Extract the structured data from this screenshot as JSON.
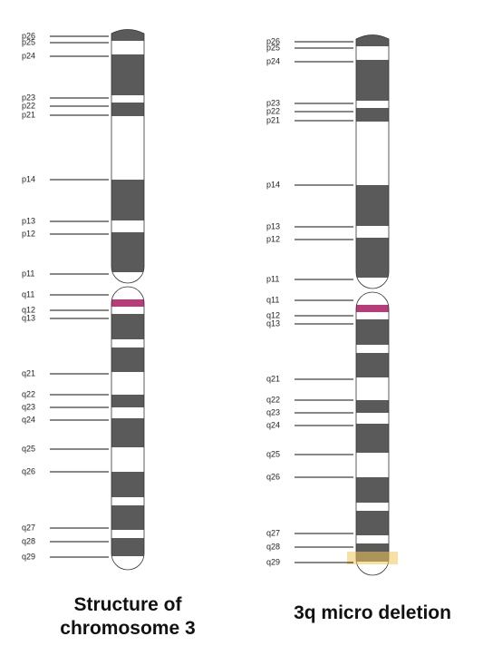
{
  "chromosomes": [
    {
      "caption": "Structure of chromosome 3",
      "labels": [
        "p26",
        "p25",
        "p24",
        "p23",
        "p22",
        "p21",
        "p14",
        "p13",
        "p12",
        "p11",
        "q11",
        "q12",
        "q13",
        "q21",
        "q22",
        "q23",
        "q24",
        "q25",
        "q26",
        "q27",
        "q28",
        "q29"
      ]
    },
    {
      "caption": "3q micro deletion",
      "labels": [
        "p26",
        "p25",
        "p24",
        "p23",
        "p22",
        "p21",
        "p14",
        "p13",
        "p12",
        "p11",
        "q11",
        "q12",
        "q13",
        "q21",
        "q22",
        "q23",
        "q24",
        "q25",
        "q26",
        "q27",
        "q28",
        "q29"
      ]
    }
  ]
}
